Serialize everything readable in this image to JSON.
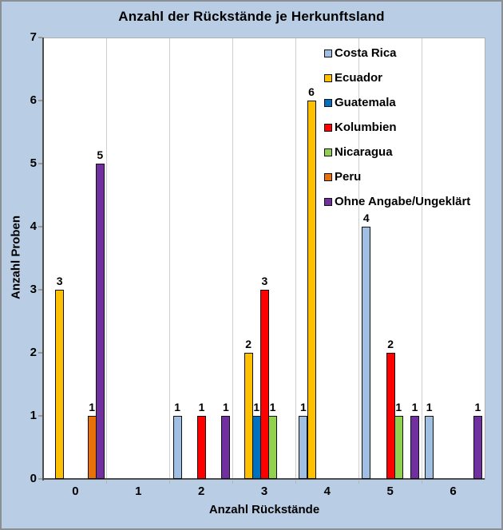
{
  "window": {
    "background_color": "#B9CDE5",
    "plot_background_color": "#FFFFFF",
    "border_color": "#8A8F96"
  },
  "chart_data": {
    "type": "bar",
    "title": "Anzahl der Rückstände je Herkunftsland",
    "xlabel": "Anzahl Rückstände",
    "ylabel": "Anzahl Proben",
    "categories": [
      "0",
      "1",
      "2",
      "3",
      "4",
      "5",
      "6"
    ],
    "y_ticks": [
      0,
      1,
      2,
      3,
      4,
      5,
      6,
      7
    ],
    "ylim": [
      0,
      7
    ],
    "grid": "vertical category separators only",
    "legend_position": "top-right inside plot area",
    "bar_value_labels": true,
    "series": [
      {
        "name": "Costa Rica",
        "color": "#A1BFE2",
        "values": [
          0,
          0,
          1,
          0,
          1,
          4,
          1
        ]
      },
      {
        "name": "Ecuador",
        "color": "#FFC000",
        "values": [
          3,
          0,
          0,
          2,
          6,
          0,
          0
        ]
      },
      {
        "name": "Guatemala",
        "color": "#0070C0",
        "values": [
          0,
          0,
          0,
          1,
          0,
          0,
          0
        ]
      },
      {
        "name": "Kolumbien",
        "color": "#FE0000",
        "values": [
          0,
          0,
          1,
          3,
          0,
          2,
          0
        ]
      },
      {
        "name": "Nicaragua",
        "color": "#92D050",
        "values": [
          0,
          0,
          0,
          1,
          0,
          1,
          0
        ]
      },
      {
        "name": "Peru",
        "color": "#E97109",
        "values": [
          1,
          0,
          0,
          0,
          0,
          0,
          0
        ]
      },
      {
        "name": "Ohne Angabe/Ungeklärt",
        "color": "#7030A0",
        "values": [
          5,
          0,
          1,
          0,
          0,
          1,
          1
        ]
      }
    ]
  }
}
